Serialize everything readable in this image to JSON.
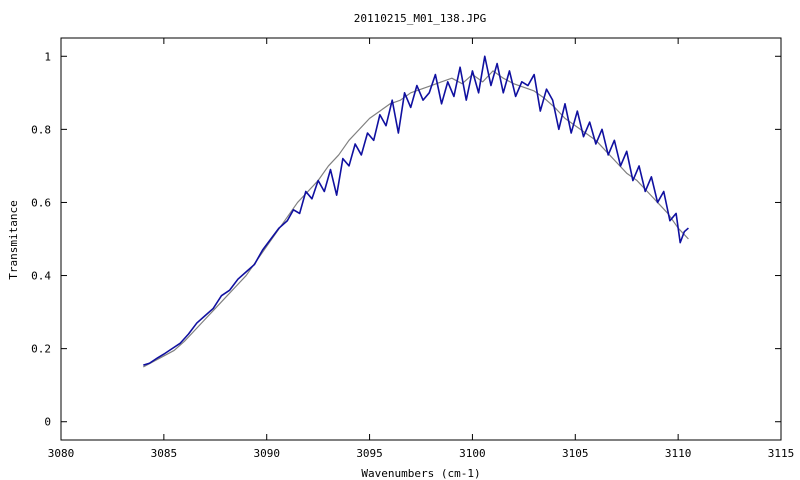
{
  "chart_data": {
    "type": "line",
    "title": "20110215_M01_138.JPG",
    "xlabel": "Wavenumbers (cm-1)",
    "ylabel": "Transmitance",
    "xlim": [
      3080,
      3115
    ],
    "ylim": [
      -0.05,
      1.05
    ],
    "xticks": [
      3080,
      3085,
      3090,
      3095,
      3100,
      3105,
      3110,
      3115
    ],
    "yticks": [
      0,
      0.2,
      0.4,
      0.6,
      0.8,
      1
    ],
    "ytick_labels": [
      "0",
      "0.2",
      "0.4",
      "0.6",
      "0.8",
      "1"
    ],
    "grid": false,
    "legend": "none",
    "series": [
      {
        "color": "#808080",
        "x": [
          3084.0,
          3084.5,
          3085.0,
          3085.5,
          3086.0,
          3086.5,
          3087.0,
          3087.5,
          3088.0,
          3088.5,
          3089.0,
          3089.5,
          3090.0,
          3090.5,
          3091.0,
          3091.5,
          3092.0,
          3092.5,
          3093.0,
          3093.5,
          3094.0,
          3094.5,
          3095.0,
          3095.5,
          3096.0,
          3096.5,
          3097.0,
          3097.5,
          3098.0,
          3098.5,
          3099.0,
          3099.5,
          3100.0,
          3100.5,
          3101.0,
          3101.5,
          3102.0,
          3102.5,
          3103.0,
          3103.5,
          3104.0,
          3104.5,
          3105.0,
          3105.5,
          3106.0,
          3106.5,
          3107.0,
          3107.5,
          3108.0,
          3108.5,
          3109.0,
          3109.5,
          3110.0,
          3110.5
        ],
        "y": [
          0.15,
          0.165,
          0.18,
          0.195,
          0.22,
          0.25,
          0.28,
          0.31,
          0.34,
          0.37,
          0.4,
          0.44,
          0.48,
          0.52,
          0.56,
          0.6,
          0.63,
          0.66,
          0.7,
          0.73,
          0.77,
          0.8,
          0.83,
          0.85,
          0.87,
          0.88,
          0.9,
          0.91,
          0.92,
          0.93,
          0.94,
          0.925,
          0.95,
          0.93,
          0.96,
          0.94,
          0.925,
          0.915,
          0.905,
          0.885,
          0.86,
          0.83,
          0.81,
          0.79,
          0.77,
          0.74,
          0.71,
          0.68,
          0.66,
          0.63,
          0.6,
          0.57,
          0.53,
          0.5
        ]
      },
      {
        "color": "#1010a0",
        "x": [
          3084.0,
          3084.3,
          3084.7,
          3085.0,
          3085.4,
          3085.8,
          3086.2,
          3086.6,
          3087.0,
          3087.4,
          3087.8,
          3088.2,
          3088.6,
          3089.0,
          3089.4,
          3089.8,
          3090.2,
          3090.6,
          3091.0,
          3091.3,
          3091.6,
          3091.9,
          3092.2,
          3092.5,
          3092.8,
          3093.1,
          3093.4,
          3093.7,
          3094.0,
          3094.3,
          3094.6,
          3094.9,
          3095.2,
          3095.5,
          3095.8,
          3096.1,
          3096.4,
          3096.7,
          3097.0,
          3097.3,
          3097.6,
          3097.9,
          3098.2,
          3098.5,
          3098.8,
          3099.1,
          3099.4,
          3099.7,
          3100.0,
          3100.3,
          3100.6,
          3100.9,
          3101.2,
          3101.5,
          3101.8,
          3102.1,
          3102.4,
          3102.7,
          3103.0,
          3103.3,
          3103.6,
          3103.9,
          3104.2,
          3104.5,
          3104.8,
          3105.1,
          3105.4,
          3105.7,
          3106.0,
          3106.3,
          3106.6,
          3106.9,
          3107.2,
          3107.5,
          3107.8,
          3108.1,
          3108.4,
          3108.7,
          3109.0,
          3109.3,
          3109.6,
          3109.9,
          3110.1,
          3110.3,
          3110.5
        ],
        "y": [
          0.155,
          0.16,
          0.175,
          0.185,
          0.2,
          0.215,
          0.24,
          0.27,
          0.29,
          0.31,
          0.345,
          0.36,
          0.39,
          0.41,
          0.43,
          0.47,
          0.5,
          0.53,
          0.55,
          0.58,
          0.57,
          0.63,
          0.61,
          0.66,
          0.63,
          0.69,
          0.62,
          0.72,
          0.7,
          0.76,
          0.73,
          0.79,
          0.77,
          0.84,
          0.81,
          0.88,
          0.79,
          0.9,
          0.86,
          0.92,
          0.88,
          0.9,
          0.95,
          0.87,
          0.93,
          0.89,
          0.97,
          0.88,
          0.96,
          0.9,
          1.0,
          0.92,
          0.98,
          0.9,
          0.96,
          0.89,
          0.93,
          0.92,
          0.95,
          0.85,
          0.91,
          0.88,
          0.8,
          0.87,
          0.79,
          0.85,
          0.78,
          0.82,
          0.76,
          0.8,
          0.73,
          0.77,
          0.7,
          0.74,
          0.66,
          0.7,
          0.63,
          0.67,
          0.6,
          0.63,
          0.55,
          0.57,
          0.49,
          0.52,
          0.53
        ]
      }
    ]
  }
}
